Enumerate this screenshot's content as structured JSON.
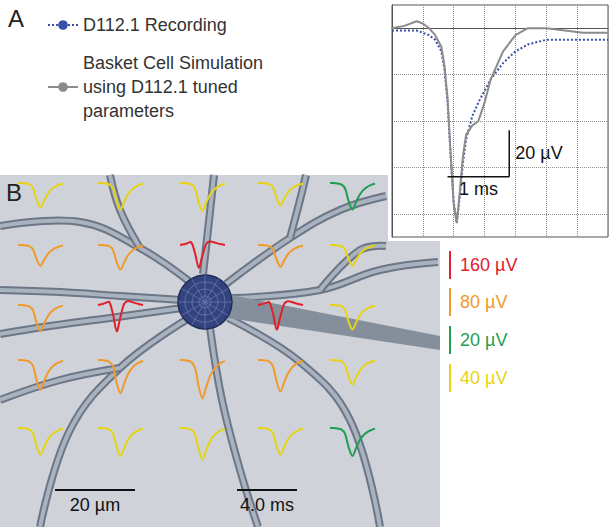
{
  "chart_data": {
    "type": "line",
    "panel": "A",
    "x": [
      0,
      0.2,
      0.4,
      0.5,
      0.6,
      0.7,
      0.8,
      0.85,
      0.9,
      0.95,
      1.0,
      1.05,
      1.1,
      1.15,
      1.2,
      1.3,
      1.4,
      1.5,
      1.6,
      1.8,
      2.0,
      2.2,
      2.5,
      2.8,
      3.1,
      3.5
    ],
    "series": [
      {
        "name": "D112.1 Recording",
        "color": "#3a4fa8",
        "line_style": "dotted",
        "values": [
          -1,
          -1,
          -1,
          -2,
          -3,
          -5,
          -10,
          -18,
          -32,
          -55,
          -75,
          -84,
          -72,
          -58,
          -48,
          -38,
          -32,
          -27,
          -22,
          -15,
          -10,
          -7,
          -5,
          -5,
          -5,
          -5
        ]
      },
      {
        "name": "Basket Cell Simulation using D112.1 tuned parameters",
        "color": "#8c8c8c",
        "line_style": "solid",
        "values": [
          0,
          1,
          3,
          2,
          0,
          -3,
          -8,
          -16,
          -30,
          -54,
          -76,
          -84,
          -70,
          -55,
          -46,
          -42,
          -40,
          -32,
          -22,
          -10,
          -3,
          0,
          0,
          -1,
          -2,
          -2
        ]
      }
    ],
    "xlim": [
      0,
      3.5
    ],
    "xticks": [
      0,
      0.5,
      1,
      1.5,
      2,
      2.5,
      3,
      3.5
    ],
    "ylim": [
      -90,
      10
    ],
    "yticks": [
      -80,
      -60,
      -40,
      -20,
      0
    ],
    "grid": true,
    "tick_labels": false,
    "legend": "left",
    "scale_bars": [
      {
        "axis": "y",
        "value": 20,
        "label": "20 µV"
      },
      {
        "axis": "x",
        "value": 1,
        "label": "1 ms"
      }
    ]
  },
  "diagram": {
    "panel": "B",
    "time_scale": {
      "value": 4.0,
      "label": "4.0 ms"
    },
    "space_scale": {
      "value": 20,
      "label": "20 µm"
    },
    "amplitude_scales": [
      {
        "value": 160,
        "label": "160 µV",
        "color": "#e0202a"
      },
      {
        "value": 80,
        "label": "80 µV",
        "color": "#f09a2a"
      },
      {
        "value": 20,
        "label": "20 µV",
        "color": "#1f9e4f"
      },
      {
        "value": 40,
        "label": "40 µV",
        "color": "#e6d414"
      }
    ],
    "templates": {
      "time": [
        0,
        0.25,
        0.5,
        0.75,
        1,
        1.25,
        1.5,
        1.75,
        2,
        2.25,
        2.5,
        2.75,
        3
      ],
      "monophasic": [
        0,
        0,
        -0.02,
        -0.05,
        -0.2,
        -0.7,
        -1,
        -0.7,
        -0.42,
        -0.25,
        -0.14,
        -0.07,
        -0.03
      ],
      "biphasic": [
        0,
        0.03,
        0.08,
        0.12,
        -0.35,
        -1,
        -0.45,
        0.05,
        0.15,
        0.12,
        0.07,
        0.03,
        0
      ]
    },
    "cells": [
      [
        {
          "amplitude": 35,
          "scale": 40,
          "shape": "monophasic"
        },
        {
          "amplitude": 38,
          "scale": 40,
          "shape": "monophasic"
        },
        {
          "amplitude": 40,
          "scale": 40,
          "shape": "monophasic"
        },
        {
          "amplitude": 32,
          "scale": 40,
          "shape": "monophasic"
        },
        {
          "amplitude": 19,
          "scale": 20,
          "shape": "monophasic"
        }
      ],
      [
        {
          "amplitude": 60,
          "scale": 80,
          "shape": "monophasic"
        },
        {
          "amplitude": 70,
          "scale": 80,
          "shape": "monophasic"
        },
        {
          "amplitude": 130,
          "scale": 160,
          "shape": "biphasic"
        },
        {
          "amplitude": 62,
          "scale": 80,
          "shape": "monophasic"
        },
        {
          "amplitude": 30,
          "scale": 40,
          "shape": "monophasic"
        }
      ],
      [
        {
          "amplitude": 75,
          "scale": 80,
          "shape": "monophasic"
        },
        {
          "amplitude": 150,
          "scale": 160,
          "shape": "biphasic"
        },
        null,
        {
          "amplitude": 140,
          "scale": 160,
          "shape": "biphasic"
        },
        {
          "amplitude": 35,
          "scale": 40,
          "shape": "monophasic"
        }
      ],
      [
        {
          "amplitude": 85,
          "scale": 80,
          "shape": "monophasic"
        },
        {
          "amplitude": 95,
          "scale": 80,
          "shape": "monophasic"
        },
        {
          "amplitude": 110,
          "scale": 80,
          "shape": "monophasic"
        },
        {
          "amplitude": 90,
          "scale": 80,
          "shape": "monophasic"
        },
        {
          "amplitude": 35,
          "scale": 40,
          "shape": "monophasic"
        }
      ],
      [
        {
          "amplitude": 38,
          "scale": 40,
          "shape": "monophasic"
        },
        {
          "amplitude": 40,
          "scale": 40,
          "shape": "monophasic"
        },
        {
          "amplitude": 45,
          "scale": 40,
          "shape": "monophasic"
        },
        {
          "amplitude": 38,
          "scale": 40,
          "shape": "monophasic"
        },
        {
          "amplitude": 20,
          "scale": 20,
          "shape": "monophasic"
        }
      ]
    ]
  }
}
